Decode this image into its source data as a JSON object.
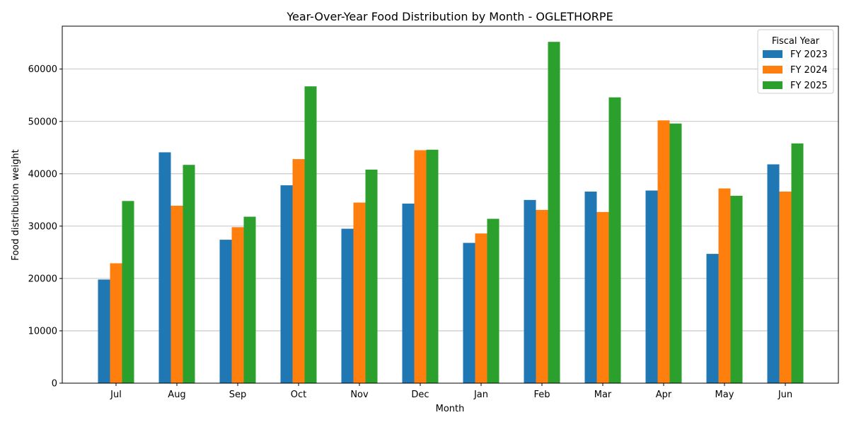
{
  "chart_data": {
    "type": "bar",
    "title": "Year-Over-Year Food Distribution by Month - OGLETHORPE",
    "xlabel": "Month",
    "ylabel": "Food distribution weight",
    "categories": [
      "Jul",
      "Aug",
      "Sep",
      "Oct",
      "Nov",
      "Dec",
      "Jan",
      "Feb",
      "Mar",
      "Apr",
      "May",
      "Jun"
    ],
    "ylim": [
      0,
      68200
    ],
    "yticks": [
      0,
      10000,
      20000,
      30000,
      40000,
      50000,
      60000
    ],
    "ytick_labels": [
      "0",
      "10000",
      "20000",
      "30000",
      "40000",
      "50000",
      "60000"
    ],
    "grid": "horizontal",
    "legend": {
      "title": "Fiscal Year",
      "placement": "top-right"
    },
    "series": [
      {
        "name": "FY 2023",
        "color": "#1f77b4",
        "values": [
          19800,
          44100,
          27400,
          37800,
          29500,
          34300,
          26800,
          35000,
          36600,
          36800,
          24700,
          41800
        ]
      },
      {
        "name": "FY 2024",
        "color": "#ff7f0e",
        "values": [
          22900,
          33900,
          29800,
          42800,
          34500,
          44500,
          28600,
          33100,
          32700,
          50200,
          37200,
          36600
        ]
      },
      {
        "name": "FY 2025",
        "color": "#2ca02c",
        "values": [
          34800,
          41700,
          31800,
          56700,
          40800,
          44600,
          31400,
          65200,
          54600,
          49600,
          35800,
          45800
        ]
      }
    ]
  }
}
